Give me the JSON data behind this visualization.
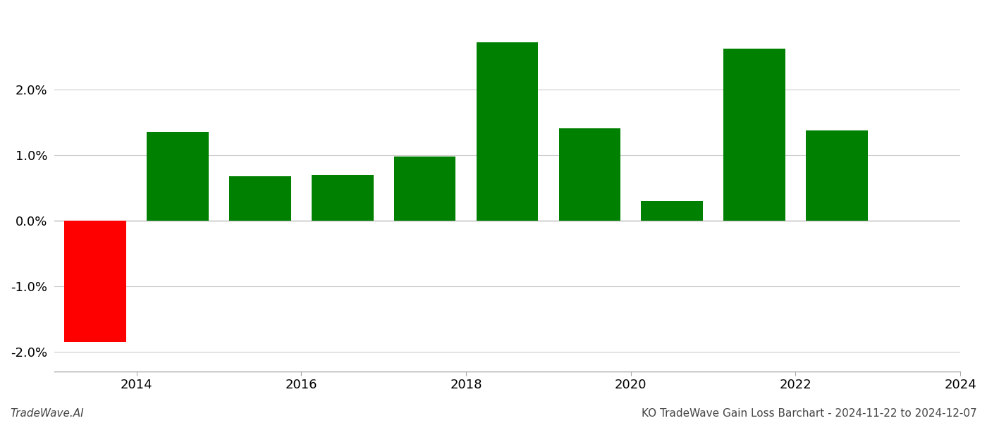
{
  "years": [
    2013.5,
    2014.5,
    2015.5,
    2016.5,
    2017.5,
    2018.5,
    2019.5,
    2020.5,
    2021.5,
    2022.5
  ],
  "values": [
    -1.85,
    1.35,
    0.67,
    0.7,
    0.97,
    2.72,
    1.4,
    0.3,
    2.62,
    1.37
  ],
  "colors": [
    "#ff0000",
    "#008000",
    "#008000",
    "#008000",
    "#008000",
    "#008000",
    "#008000",
    "#008000",
    "#008000",
    "#008000"
  ],
  "ylim": [
    -2.3,
    3.2
  ],
  "yticks": [
    -2.0,
    -1.0,
    0.0,
    1.0,
    2.0
  ],
  "bar_width": 0.75,
  "grid_color": "#cccccc",
  "background_color": "#ffffff",
  "footer_left": "TradeWave.AI",
  "footer_right": "KO TradeWave Gain Loss Barchart - 2024-11-22 to 2024-12-07",
  "footer_fontsize": 11,
  "tick_label_fontsize": 13,
  "spine_color": "#aaaaaa",
  "xtick_positions": [
    2014,
    2016,
    2018,
    2020,
    2022,
    2024
  ],
  "xtick_labels": [
    "2014",
    "2016",
    "2018",
    "2020",
    "2022",
    "2024"
  ],
  "xlim": [
    2013.0,
    2024.0
  ]
}
